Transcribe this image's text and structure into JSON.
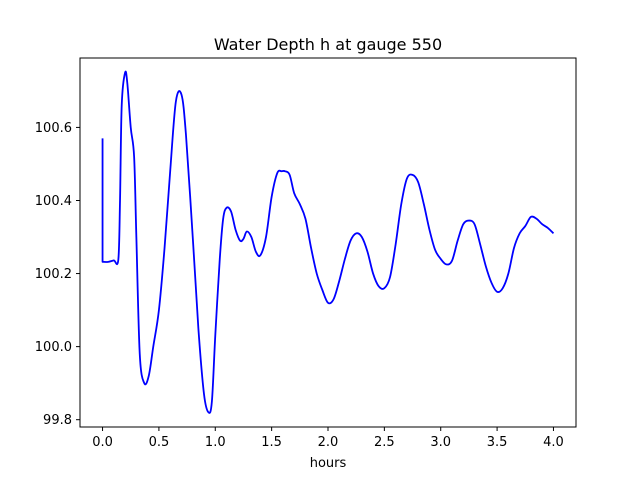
{
  "chart_data": {
    "type": "line",
    "title": "Water Depth h at gauge 550",
    "xlabel": "hours",
    "ylabel": "",
    "xlim": [
      -0.2,
      4.2
    ],
    "ylim": [
      99.78,
      100.79
    ],
    "xticks": [
      0.0,
      0.5,
      1.0,
      1.5,
      2.0,
      2.5,
      3.0,
      3.5,
      4.0
    ],
    "xtick_labels": [
      "0.0",
      "0.5",
      "1.0",
      "1.5",
      "2.0",
      "2.5",
      "3.0",
      "3.5",
      "4.0"
    ],
    "yticks": [
      99.8,
      100.0,
      100.2,
      100.4,
      100.6
    ],
    "ytick_labels": [
      "99.8",
      "100.0",
      "100.2",
      "100.4",
      "100.6"
    ],
    "grid": false,
    "series": [
      {
        "color": "#0000ff",
        "x": [
          0.0,
          0.0,
          0.05,
          0.1,
          0.14,
          0.155,
          0.17,
          0.2,
          0.22,
          0.25,
          0.28,
          0.3,
          0.33,
          0.37,
          0.41,
          0.45,
          0.5,
          0.55,
          0.6,
          0.65,
          0.7,
          0.74,
          0.8,
          0.85,
          0.9,
          0.94,
          0.97,
          1.0,
          1.04,
          1.07,
          1.1,
          1.14,
          1.18,
          1.22,
          1.25,
          1.28,
          1.32,
          1.36,
          1.4,
          1.45,
          1.5,
          1.55,
          1.59,
          1.62,
          1.66,
          1.7,
          1.75,
          1.8,
          1.85,
          1.9,
          1.95,
          2.0,
          2.05,
          2.1,
          2.15,
          2.2,
          2.25,
          2.3,
          2.35,
          2.4,
          2.45,
          2.5,
          2.55,
          2.6,
          2.65,
          2.7,
          2.75,
          2.8,
          2.85,
          2.9,
          2.95,
          3.0,
          3.05,
          3.1,
          3.15,
          3.2,
          3.25,
          3.3,
          3.35,
          3.4,
          3.45,
          3.5,
          3.55,
          3.6,
          3.65,
          3.7,
          3.75,
          3.8,
          3.85,
          3.9,
          3.95,
          4.0
        ],
        "y": [
          100.57,
          100.232,
          100.232,
          100.236,
          100.238,
          100.4,
          100.66,
          100.75,
          100.72,
          100.6,
          100.52,
          100.3,
          99.98,
          99.9,
          99.92,
          100.0,
          100.1,
          100.27,
          100.48,
          100.67,
          100.69,
          100.58,
          100.3,
          100.05,
          99.87,
          99.82,
          99.85,
          100.03,
          100.24,
          100.35,
          100.38,
          100.37,
          100.32,
          100.29,
          100.295,
          100.315,
          100.3,
          100.26,
          100.25,
          100.3,
          100.41,
          100.475,
          100.48,
          100.48,
          100.47,
          100.42,
          100.39,
          100.35,
          100.27,
          100.2,
          100.155,
          100.12,
          100.13,
          100.18,
          100.24,
          100.29,
          100.31,
          100.3,
          100.26,
          100.2,
          100.165,
          100.16,
          100.19,
          100.28,
          100.39,
          100.46,
          100.47,
          100.45,
          100.39,
          100.32,
          100.265,
          100.24,
          100.225,
          100.235,
          100.29,
          100.335,
          100.345,
          100.335,
          100.28,
          100.22,
          100.175,
          100.15,
          100.16,
          100.2,
          100.27,
          100.31,
          100.33,
          100.355,
          100.35,
          100.335,
          100.325,
          100.31
        ]
      }
    ]
  }
}
